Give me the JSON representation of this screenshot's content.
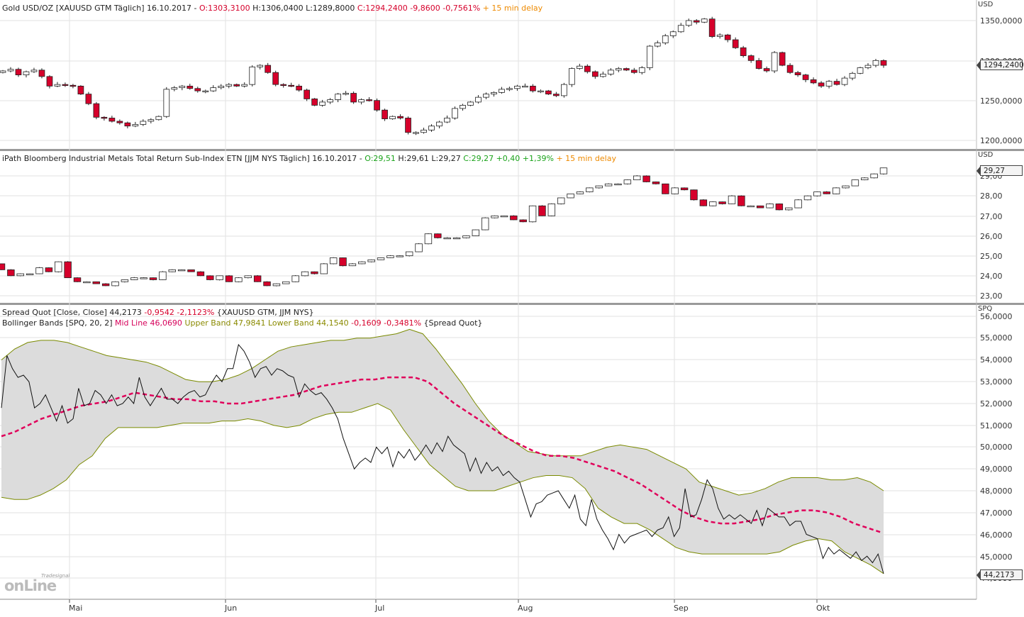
{
  "panel1": {
    "title": "Gold USD/OZ [XAUUSD GTM Täglich] 16.10.2017",
    "o": "O:1303,3100",
    "hl": "H:1306,0400 L:1289,8000",
    "c": "C:1294,2400 -9,8600 -0,7561%",
    "delay": "15 min delay",
    "unit": "USD",
    "last": "1294,2400"
  },
  "panel2": {
    "title": "iPath Bloomberg Industrial Metals Total Return Sub-Index ETN [JJM NYS Täglich] 16.10.2017",
    "o": "O:29,51",
    "hl": "H:29,61 L:29,27",
    "c": "C:29,27 +0,40 +1,39%",
    "delay": "15 min delay",
    "unit": "USD",
    "last": "29,27"
  },
  "panel3": {
    "line1_a": "Spread Quot [Close, Close]",
    "line1_b": "44,2173",
    "line1_c": "-0,9542 -2,1123%",
    "line1_d": "{XAUUSD GTM, JJM NYS}",
    "line2_a": "Bollinger Bands [SPQ, 20, 2]",
    "line2_b": "Mid Line 46,0690",
    "line2_c": "Upper Band 47,9841",
    "line2_d": "Lower Band 44,1540",
    "line2_e": "-0,1609 -0,3481%",
    "line2_f": "{Spread Quot}",
    "unit": "SPQ",
    "last": "44,2173"
  },
  "logo": {
    "small": "Tradesignal",
    "big": "onLine"
  },
  "colors": {
    "up": "#ffffff",
    "down": "#d6002b",
    "mid": "#e0005a",
    "band": "#7a8a00",
    "fill": "#dcdcdc"
  },
  "chart_data": [
    {
      "type": "candlestick",
      "title": "Gold USD/OZ [XAUUSD GTM Täglich] 16.10.2017",
      "ylabel": "USD",
      "ylim": [
        1192,
        1362
      ],
      "yticks": [
        1200,
        1250,
        1300,
        1350
      ],
      "ytick_labels": [
        "1200,0000",
        "1250,0000",
        "1300,0000",
        "1350,0000"
      ],
      "x_labels": [
        "Mai",
        "Jun",
        "Jul",
        "Aug",
        "Sep",
        "Okt"
      ],
      "close": [
        1287,
        1289,
        1282,
        1286,
        1288,
        1280,
        1268,
        1270,
        1269,
        1268,
        1258,
        1246,
        1229,
        1228,
        1224,
        1222,
        1218,
        1220,
        1224,
        1226,
        1230,
        1264,
        1266,
        1268,
        1265,
        1262,
        1262,
        1266,
        1268,
        1270,
        1268,
        1270,
        1292,
        1294,
        1285,
        1270,
        1269,
        1268,
        1263,
        1252,
        1244,
        1248,
        1251,
        1258,
        1259,
        1248,
        1251,
        1250,
        1238,
        1227,
        1230,
        1228,
        1210,
        1210,
        1213,
        1218,
        1223,
        1228,
        1240,
        1244,
        1248,
        1254,
        1258,
        1260,
        1264,
        1265,
        1268,
        1268,
        1262,
        1262,
        1258,
        1256,
        1270,
        1290,
        1293,
        1286,
        1280,
        1283,
        1288,
        1290,
        1288,
        1285,
        1291,
        1318,
        1322,
        1331,
        1336,
        1344,
        1350,
        1348,
        1352,
        1330,
        1332,
        1326,
        1316,
        1306,
        1300,
        1290,
        1287,
        1310,
        1294,
        1285,
        1282,
        1276,
        1272,
        1268,
        1274,
        1270,
        1278,
        1284,
        1291,
        1294,
        1300,
        1294
      ]
    },
    {
      "type": "candlestick",
      "title": "iPath Bloomberg Industrial Metals Total Return Sub-Index ETN [JJM NYS Täglich] 16.10.2017",
      "ylabel": "USD",
      "ylim": [
        22.6,
        29.9
      ],
      "yticks": [
        23,
        24,
        25,
        26,
        27,
        28,
        29
      ],
      "ytick_labels": [
        "23,00",
        "24,00",
        "25,00",
        "26,00",
        "27,00",
        "28,00",
        "29,00"
      ],
      "x_labels": [
        "Mai",
        "Jun",
        "Jul",
        "Aug",
        "Sep",
        "Okt"
      ],
      "close": [
        24.3,
        24.0,
        24.1,
        24.1,
        24.4,
        24.2,
        24.7,
        23.9,
        23.7,
        23.7,
        23.6,
        23.5,
        23.7,
        23.8,
        23.9,
        23.9,
        23.8,
        24.2,
        24.3,
        24.3,
        24.2,
        24.0,
        23.8,
        24.0,
        23.7,
        23.9,
        24.0,
        23.7,
        23.5,
        23.6,
        23.7,
        24.0,
        24.2,
        24.1,
        24.6,
        24.9,
        24.5,
        24.6,
        24.7,
        24.8,
        24.9,
        25.0,
        25.0,
        25.2,
        25.6,
        26.1,
        25.9,
        25.9,
        25.9,
        26.0,
        26.3,
        26.9,
        27.0,
        27.0,
        26.8,
        26.7,
        27.5,
        27.0,
        27.6,
        27.9,
        28.1,
        28.2,
        28.4,
        28.5,
        28.6,
        28.6,
        28.8,
        29.0,
        28.7,
        28.6,
        28.1,
        28.4,
        28.3,
        27.8,
        27.5,
        27.7,
        27.6,
        28.0,
        27.5,
        27.5,
        27.4,
        27.6,
        27.3,
        27.4,
        27.8,
        28.0,
        28.2,
        28.1,
        28.4,
        28.5,
        28.8,
        28.9,
        29.1,
        29.4
      ]
    },
    {
      "type": "line",
      "title": "Spread Quot [Close, Close] / Bollinger Bands [SPQ, 20, 2]",
      "ylabel": "SPQ",
      "ylim": [
        43.0,
        56.3
      ],
      "yticks": [
        44,
        45,
        46,
        47,
        48,
        49,
        50,
        51,
        52,
        53,
        54,
        55,
        56
      ],
      "ytick_labels": [
        "44,0000",
        "45,0000",
        "46,0000",
        "47,0000",
        "48,0000",
        "49,0000",
        "50,0000",
        "51,0000",
        "52,0000",
        "53,0000",
        "54,0000",
        "55,0000",
        "56,0000"
      ],
      "x_labels": [
        "Mai",
        "Jun",
        "Jul",
        "Aug",
        "Sep",
        "Okt"
      ],
      "series": [
        {
          "name": "Spread Quot",
          "values": [
            51.8,
            54.2,
            53.6,
            53.2,
            53.3,
            53.0,
            51.8,
            52.0,
            52.4,
            51.8,
            51.2,
            51.9,
            51.1,
            51.3,
            52.7,
            51.9,
            52.0,
            52.6,
            52.4,
            52.0,
            52.4,
            51.9,
            52.0,
            52.3,
            52.0,
            53.2,
            52.3,
            51.9,
            52.3,
            52.7,
            52.2,
            52.2,
            52.0,
            52.3,
            52.5,
            52.6,
            52.3,
            52.4,
            52.9,
            53.3,
            53.0,
            53.6,
            53.6,
            54.7,
            54.4,
            53.9,
            53.2,
            53.6,
            53.7,
            53.3,
            53.6,
            53.5,
            53.3,
            53.2,
            52.3,
            52.9,
            52.6,
            52.4,
            52.5,
            52.2,
            51.8,
            51.3,
            50.4,
            49.7,
            49.0,
            49.3,
            49.5,
            49.3,
            50.0,
            49.7,
            50.0,
            49.1,
            49.8,
            49.5,
            49.9,
            49.4,
            49.7,
            50.1,
            49.7,
            50.2,
            49.8,
            50.5,
            50.1,
            49.9,
            49.7,
            48.9,
            49.5,
            48.8,
            49.3,
            48.9,
            49.1,
            48.7,
            48.9,
            48.6,
            48.4,
            47.6,
            46.8,
            47.4,
            47.5,
            47.8,
            47.9,
            48.0,
            47.6,
            47.2,
            47.8,
            46.7,
            46.4,
            47.6,
            46.7,
            46.2,
            45.8,
            45.3,
            46.0,
            45.6,
            45.9,
            46.0,
            46.1,
            46.2,
            45.9,
            46.2,
            46.3,
            46.8,
            45.9,
            46.3,
            48.1,
            46.8,
            46.9,
            47.6,
            48.5,
            48.1,
            47.2,
            46.7,
            46.9,
            46.7,
            46.9,
            46.7,
            46.5,
            47.1,
            46.4,
            47.2,
            47.0,
            46.8,
            46.8,
            46.4,
            46.6,
            46.6,
            46.0,
            45.9,
            45.8,
            44.9,
            45.4,
            45.1,
            45.3,
            45.1,
            44.9,
            45.2,
            44.8,
            45.0,
            44.7,
            45.1,
            44.2
          ]
        },
        {
          "name": "Mid Line",
          "values": [
            50.5,
            50.7,
            51.0,
            51.3,
            51.5,
            51.7,
            51.9,
            52.0,
            52.1,
            52.3,
            52.5,
            52.4,
            52.3,
            52.2,
            52.2,
            52.1,
            52.1,
            52.0,
            52.0,
            52.1,
            52.2,
            52.3,
            52.4,
            52.6,
            52.8,
            52.9,
            53.0,
            53.1,
            53.1,
            53.2,
            53.2,
            53.2,
            53.0,
            52.5,
            52.0,
            51.6,
            51.2,
            50.8,
            50.4,
            50.1,
            49.8,
            49.6,
            49.6,
            49.5,
            49.3,
            49.1,
            48.9,
            48.6,
            48.3,
            47.9,
            47.5,
            47.1,
            46.8,
            46.6,
            46.5,
            46.5,
            46.6,
            46.7,
            46.9,
            47.0,
            47.1,
            47.1,
            47.0,
            46.8,
            46.5,
            46.3,
            46.1
          ]
        },
        {
          "name": "Upper Band",
          "values": [
            54.0,
            54.5,
            54.8,
            54.9,
            54.9,
            54.8,
            54.6,
            54.4,
            54.2,
            54.1,
            54.0,
            53.9,
            53.7,
            53.4,
            53.1,
            53.0,
            53.0,
            53.1,
            53.3,
            53.6,
            54.0,
            54.4,
            54.6,
            54.7,
            54.8,
            54.9,
            54.9,
            55.0,
            55.0,
            55.1,
            55.2,
            55.4,
            55.2,
            54.5,
            53.7,
            52.9,
            52.0,
            51.2,
            50.6,
            50.2,
            49.8,
            49.7,
            49.6,
            49.6,
            49.6,
            49.8,
            50.0,
            50.1,
            50.0,
            49.9,
            49.6,
            49.3,
            49.0,
            48.4,
            48.2,
            48.0,
            47.8,
            47.9,
            48.1,
            48.4,
            48.6,
            48.6,
            48.6,
            48.5,
            48.5,
            48.6,
            48.4,
            48.0
          ]
        },
        {
          "name": "Lower Band",
          "values": [
            47.7,
            47.6,
            47.6,
            47.8,
            48.1,
            48.5,
            49.2,
            49.6,
            50.4,
            50.9,
            50.9,
            50.9,
            50.9,
            51.0,
            51.1,
            51.1,
            51.1,
            51.2,
            51.2,
            51.3,
            51.2,
            51.0,
            50.9,
            51.0,
            51.3,
            51.5,
            51.6,
            51.6,
            51.8,
            52.0,
            51.7,
            50.8,
            50.0,
            49.2,
            48.7,
            48.2,
            48.0,
            48.0,
            48.0,
            48.2,
            48.4,
            48.6,
            48.7,
            48.7,
            48.6,
            48.1,
            47.2,
            46.8,
            46.5,
            46.5,
            46.2,
            45.8,
            45.4,
            45.2,
            45.1,
            45.1,
            45.1,
            45.1,
            45.1,
            45.1,
            45.2,
            45.5,
            45.7,
            45.8,
            45.7,
            45.2,
            44.9,
            44.6,
            44.2
          ]
        }
      ]
    }
  ]
}
